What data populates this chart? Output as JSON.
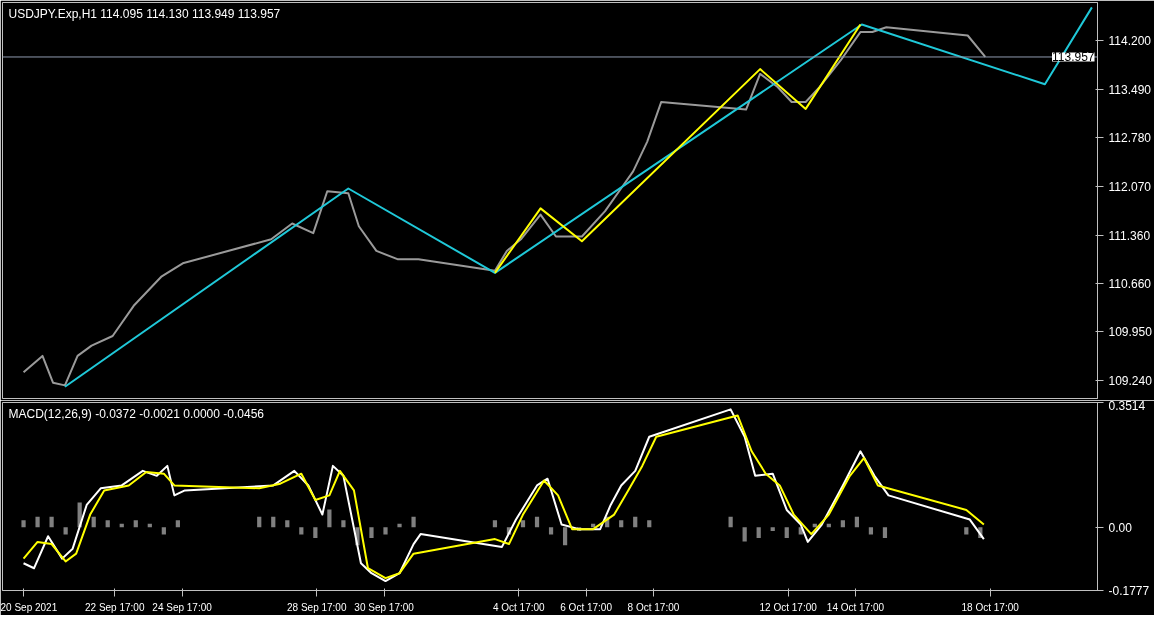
{
  "chart_data": [
    {
      "type": "line",
      "title": "USDJPY.Exp,H1  114.095 114.130 113.949 113.957",
      "xlim": [
        "2021-09-19T09:00",
        "2021-10-21T21:30"
      ],
      "ylim": [
        108.979,
        114.751
      ],
      "yticks": [
        {
          "value": 109.24,
          "label": "109.240"
        },
        {
          "value": 109.95,
          "label": "109.950"
        },
        {
          "value": 110.66,
          "label": "110.660"
        },
        {
          "value": 111.36,
          "label": "111.360"
        },
        {
          "value": 112.07,
          "label": "112.070"
        },
        {
          "value": 112.78,
          "label": "112.780"
        },
        {
          "value": 113.49,
          "label": "113.490"
        },
        {
          "value": 114.2,
          "label": "114.200"
        }
      ],
      "tick_labels": "y",
      "grid": false,
      "series": [
        {
          "color": "#9a9a9a",
          "x": [
            "2021-09-20T00:00",
            "2021-09-20T13:30",
            "2021-09-20T21:00",
            "2021-09-21T05:30",
            "2021-09-21T14:30",
            "2021-09-22T00:30",
            "2021-09-22T15:30",
            "2021-09-23T06:30",
            "2021-09-24T02:30",
            "2021-09-24T17:30",
            "2021-09-27T08:30",
            "2021-09-27T23:30",
            "2021-09-28T14:30",
            "2021-09-29T00:30",
            "2021-09-29T15:30",
            "2021-09-29T23:00",
            "2021-09-30T11:30",
            "2021-10-01T02:30",
            "2021-10-01T17:30",
            "2021-10-04T00:00",
            "2021-10-04T08:30",
            "2021-10-04T18:30",
            "2021-10-05T08:30",
            "2021-10-05T19:30",
            "2021-10-06T14:00",
            "2021-10-07T06:30",
            "2021-10-07T16:30",
            "2021-10-08T02:30",
            "2021-10-08T12:30",
            "2021-10-08T22:30",
            "2021-10-11T11:00",
            "2021-10-11T21:00",
            "2021-10-12T09:30",
            "2021-10-12T19:30",
            "2021-10-13T05:30",
            "2021-10-13T15:30",
            "2021-10-14T06:30",
            "2021-10-14T20:30",
            "2021-10-15T05:00",
            "2021-10-15T15:00",
            "2021-10-18T01:00",
            "2021-10-18T13:30"
          ],
          "values": [
            109.36,
            109.6,
            109.21,
            109.17,
            109.6,
            109.75,
            109.89,
            110.33,
            110.76,
            110.95,
            111.3,
            111.53,
            111.39,
            112.0,
            111.97,
            111.49,
            111.13,
            111.01,
            111.01,
            110.84,
            111.13,
            111.3,
            111.66,
            111.34,
            111.34,
            111.71,
            112.0,
            112.29,
            112.72,
            113.3,
            113.19,
            113.71,
            113.52,
            113.3,
            113.3,
            113.52,
            113.91,
            114.32,
            114.32,
            114.39,
            114.27,
            113.96
          ]
        },
        {
          "color": "#1fc8d8",
          "x": [
            "2021-09-21T05:30",
            "2021-09-29T15:30",
            "2021-10-04T00:00",
            "2021-10-14T21:30",
            "2021-10-20T08:00",
            "2021-10-21T17:30"
          ],
          "values": [
            109.15,
            112.04,
            110.81,
            114.43,
            113.56,
            114.68
          ]
        },
        {
          "color": "#ffff00",
          "x": [
            "2021-10-04T00:00",
            "2021-10-05T08:30",
            "2021-10-06T14:00",
            "2021-10-11T21:00",
            "2021-10-13T05:30",
            "2021-10-14T20:30"
          ],
          "values": [
            110.81,
            111.75,
            111.27,
            113.78,
            113.2,
            114.43
          ]
        }
      ],
      "ref_lines": [
        {
          "axis": "y",
          "value": 113.957,
          "label": "113.957",
          "color": "#8e9aaf"
        }
      ]
    },
    {
      "type": "line",
      "title": "MACD(12,26,9) -0.0372 -0.0021 0.0000 -0.0456",
      "xlim": [
        "2021-09-19T09:00",
        "2021-10-21T21:30"
      ],
      "ylim": [
        -0.1777,
        0.3514
      ],
      "yticks": [
        0.3514,
        {
          "value": 0,
          "label": "0.00"
        },
        -0.1777
      ],
      "xticks": [
        {
          "value": "2021-09-20",
          "label": "20 Sep 2021"
        },
        {
          "value": "2021-09-22T17:00",
          "label": "22 Sep 17:00"
        },
        {
          "value": "2021-09-24T17:00",
          "label": "24 Sep 17:00"
        },
        {
          "value": "2021-09-28T17:00",
          "label": "28 Sep 17:00"
        },
        {
          "value": "2021-09-30T17:00",
          "label": "30 Sep 17:00"
        },
        {
          "value": "2021-10-04T17:00",
          "label": "4 Oct 17:00"
        },
        {
          "value": "2021-10-06T17:00",
          "label": "6 Oct 17:00"
        },
        {
          "value": "2021-10-08T17:00",
          "label": "8 Oct 17:00"
        },
        {
          "value": "2021-10-12T17:00",
          "label": "12 Oct 17:00"
        },
        {
          "value": "2021-10-14T17:00",
          "label": "14 Oct 17:00"
        },
        {
          "value": "2021-10-18T17:00",
          "label": "18 Oct 17:00"
        }
      ],
      "grid": false,
      "series": [
        {
          "type": "bar",
          "color": "#808080",
          "x": [
            "2021-09-20T00:00",
            "2021-09-20T10:00",
            "2021-09-20T20:00",
            "2021-09-21T06:00",
            "2021-09-21T16:00",
            "2021-09-22T02:00",
            "2021-09-22T12:00",
            "2021-09-22T22:00",
            "2021-09-23T08:00",
            "2021-09-23T18:00",
            "2021-09-24T04:00",
            "2021-09-24T14:00",
            "2021-09-27T00:00",
            "2021-09-27T10:00",
            "2021-09-27T20:00",
            "2021-09-28T06:00",
            "2021-09-28T16:00",
            "2021-09-29T02:00",
            "2021-09-29T12:00",
            "2021-09-29T22:00",
            "2021-09-30T08:00",
            "2021-09-30T18:00",
            "2021-10-01T04:00",
            "2021-10-01T14:00",
            "2021-10-04T00:00",
            "2021-10-04T10:00",
            "2021-10-04T20:00",
            "2021-10-05T06:00",
            "2021-10-05T16:00",
            "2021-10-06T02:00",
            "2021-10-06T12:00",
            "2021-10-06T22:00",
            "2021-10-07T08:00",
            "2021-10-07T18:00",
            "2021-10-08T04:00",
            "2021-10-08T14:00",
            "2021-10-11T00:00",
            "2021-10-11T10:00",
            "2021-10-11T20:00",
            "2021-10-12T06:00",
            "2021-10-12T16:00",
            "2021-10-13T02:00",
            "2021-10-13T12:00",
            "2021-10-13T22:00",
            "2021-10-14T08:00",
            "2021-10-14T18:00",
            "2021-10-15T04:00",
            "2021-10-15T14:00",
            "2021-10-18T00:00",
            "2021-10-18T10:00"
          ],
          "values": [
            0.02,
            0.03,
            0.03,
            -0.02,
            0.07,
            0.03,
            0.02,
            0.01,
            0.02,
            0.01,
            -0.02,
            0.02,
            0.03,
            0.03,
            0.02,
            -0.02,
            -0.03,
            0.05,
            0.02,
            -0.05,
            -0.03,
            -0.02,
            0.01,
            0.03,
            0.02,
            -0.02,
            0.02,
            0.03,
            -0.02,
            -0.05,
            -0.01,
            0.01,
            0.03,
            0.02,
            0.03,
            0.02,
            0.03,
            -0.04,
            -0.03,
            -0.01,
            -0.03,
            -0.02,
            0.01,
            0.01,
            0.02,
            0.03,
            -0.02,
            -0.03,
            -0.02,
            -0.03
          ]
        },
        {
          "color": "#ffffff",
          "x": [
            "2021-09-20T00:00",
            "2021-09-20T07:30",
            "2021-09-20T17:30",
            "2021-09-21T03:30",
            "2021-09-21T11:00",
            "2021-09-21T21:00",
            "2021-09-22T07:00",
            "2021-09-22T22:00",
            "2021-09-23T13:00",
            "2021-09-23T23:00",
            "2021-09-24T06:30",
            "2021-09-24T11:30",
            "2021-09-24T19:00",
            "2021-09-27T10:00",
            "2021-09-28T01:00",
            "2021-09-28T11:00",
            "2021-09-28T21:00",
            "2021-09-29T04:30",
            "2021-09-29T12:00",
            "2021-09-30T00:30",
            "2021-09-30T08:00",
            "2021-09-30T18:00",
            "2021-10-01T04:00",
            "2021-10-01T14:00",
            "2021-10-01T19:00",
            "2021-10-04T05:00",
            "2021-10-04T15:00",
            "2021-10-05T06:00",
            "2021-10-05T13:30",
            "2021-10-05T23:30",
            "2021-10-06T12:00",
            "2021-10-07T03:00",
            "2021-10-07T10:30",
            "2021-10-07T18:00",
            "2021-10-08T04:00",
            "2021-10-08T14:00",
            "2021-10-11T00:00",
            "2021-10-11T10:00",
            "2021-10-11T17:30",
            "2021-10-12T06:00",
            "2021-10-12T16:00",
            "2021-10-13T02:00",
            "2021-10-13T07:00",
            "2021-10-13T17:00",
            "2021-10-14T08:00",
            "2021-10-14T20:30",
            "2021-10-15T06:30",
            "2021-10-15T16:30",
            "2021-10-18T02:30",
            "2021-10-18T12:30"
          ],
          "values": [
            -0.101,
            -0.115,
            -0.025,
            -0.088,
            -0.06,
            0.063,
            0.11,
            0.118,
            0.159,
            0.145,
            0.173,
            0.09,
            0.104,
            0.118,
            0.159,
            0.118,
            0.036,
            0.173,
            0.145,
            -0.101,
            -0.129,
            -0.151,
            -0.129,
            -0.047,
            -0.019,
            -0.055,
            0.022,
            0.118,
            0.137,
            0.008,
            -0.005,
            -0.005,
            0.063,
            0.118,
            0.159,
            0.255,
            0.332,
            0.255,
            0.145,
            0.151,
            0.049,
            0.008,
            -0.041,
            0.008,
            0.118,
            0.214,
            0.145,
            0.09,
            0.022,
            -0.033
          ]
        },
        {
          "color": "#ffff00",
          "x": [
            "2021-09-20T00:00",
            "2021-09-20T10:00",
            "2021-09-20T20:00",
            "2021-09-21T06:00",
            "2021-09-21T13:30",
            "2021-09-21T23:30",
            "2021-09-22T09:30",
            "2021-09-23T03:00",
            "2021-09-23T15:30",
            "2021-09-24T04:00",
            "2021-09-24T11:30",
            "2021-09-27T00:00",
            "2021-09-27T15:00",
            "2021-09-28T06:00",
            "2021-09-28T16:00",
            "2021-09-29T02:00",
            "2021-09-29T09:30",
            "2021-09-29T19:30",
            "2021-09-30T05:30",
            "2021-09-30T18:00",
            "2021-10-01T04:00",
            "2021-10-01T14:00",
            "2021-10-04T00:00",
            "2021-10-04T10:00",
            "2021-10-04T20:00",
            "2021-10-05T11:00",
            "2021-10-05T21:00",
            "2021-10-06T07:00",
            "2021-10-06T22:00",
            "2021-10-07T13:00",
            "2021-10-07T23:00",
            "2021-10-08T09:00",
            "2021-10-08T19:00",
            "2021-10-11T05:00",
            "2021-10-11T15:00",
            "2021-10-12T01:00",
            "2021-10-12T11:00",
            "2021-10-12T21:00",
            "2021-10-13T09:30",
            "2021-10-13T22:00",
            "2021-10-14T13:00",
            "2021-10-14T23:00",
            "2021-10-15T09:00",
            "2021-10-18T00:00",
            "2021-10-18T12:30"
          ],
          "values": [
            -0.088,
            -0.041,
            -0.047,
            -0.096,
            -0.074,
            0.036,
            0.104,
            0.118,
            0.156,
            0.151,
            0.118,
            0.11,
            0.123,
            0.151,
            0.077,
            0.09,
            0.159,
            0.104,
            -0.115,
            -0.143,
            -0.129,
            -0.074,
            -0.033,
            -0.047,
            0.036,
            0.132,
            0.09,
            -0.005,
            -0.005,
            0.036,
            0.104,
            0.173,
            0.255,
            0.315,
            0.214,
            0.151,
            0.118,
            0.036,
            -0.019,
            0.036,
            0.145,
            0.195,
            0.118,
            0.049,
            0.008
          ]
        }
      ]
    }
  ]
}
